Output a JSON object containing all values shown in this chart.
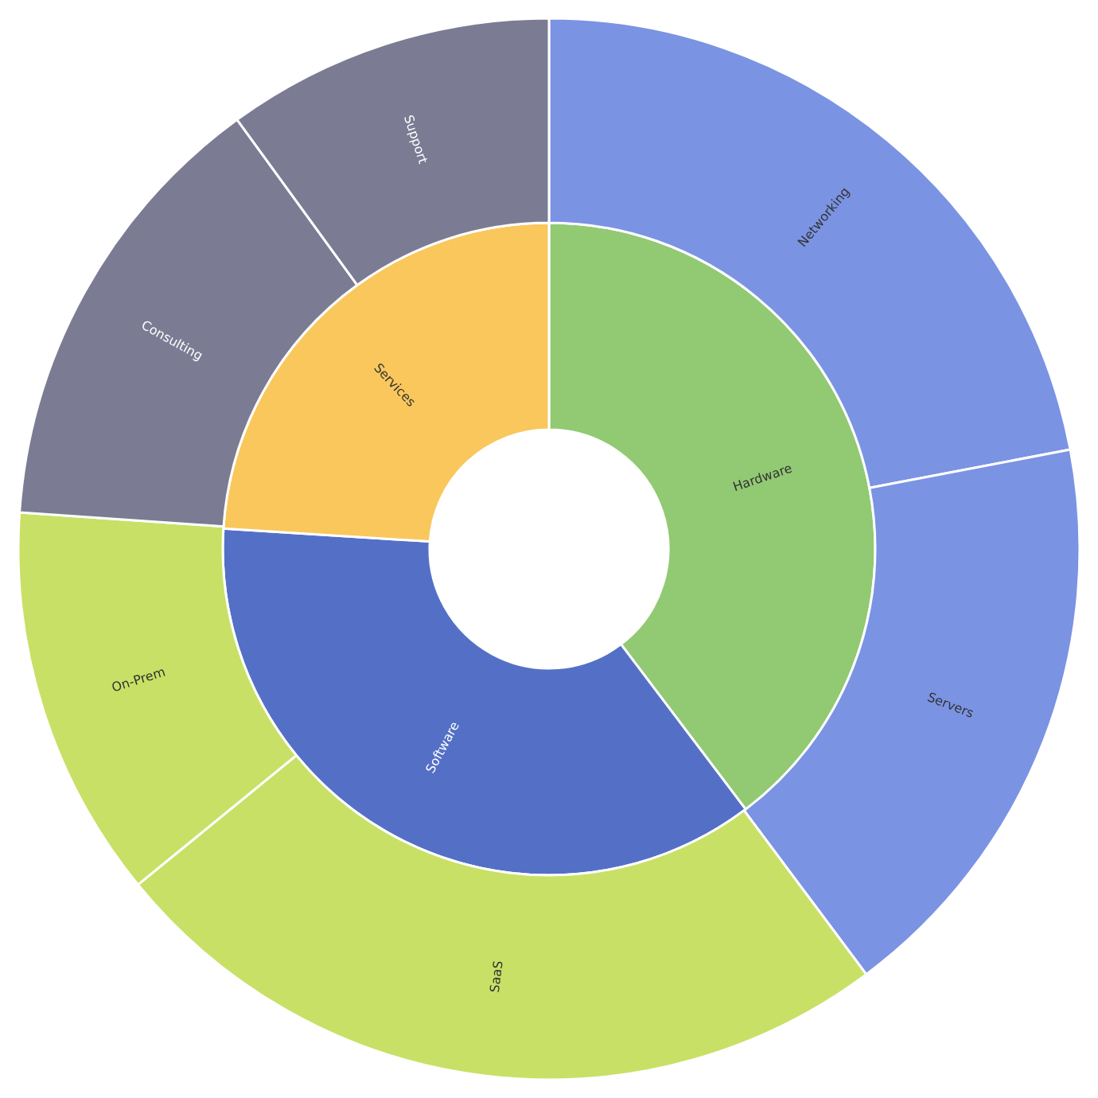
{
  "chart_data": [
    {
      "type": "donut",
      "categories": [
        "Hardware",
        "Software",
        "Services"
      ],
      "values": [
        39.7,
        36.3,
        24.0
      ],
      "colors": [
        "#92c973",
        "#5470c6",
        "#f9c75b"
      ],
      "legend": false
    },
    {
      "type": "donut",
      "categories": [
        "Networking",
        "Servers",
        "SaaS",
        "On-Prem",
        "Consulting",
        "Support"
      ],
      "values": [
        22.0,
        17.8,
        24.3,
        12.0,
        13.9,
        10.0
      ],
      "colors": [
        "#7b93e3",
        "#7b93e3",
        "#c8e066",
        "#c8e066",
        "#7b7c93",
        "#7b7c93"
      ],
      "legend": false
    }
  ]
}
